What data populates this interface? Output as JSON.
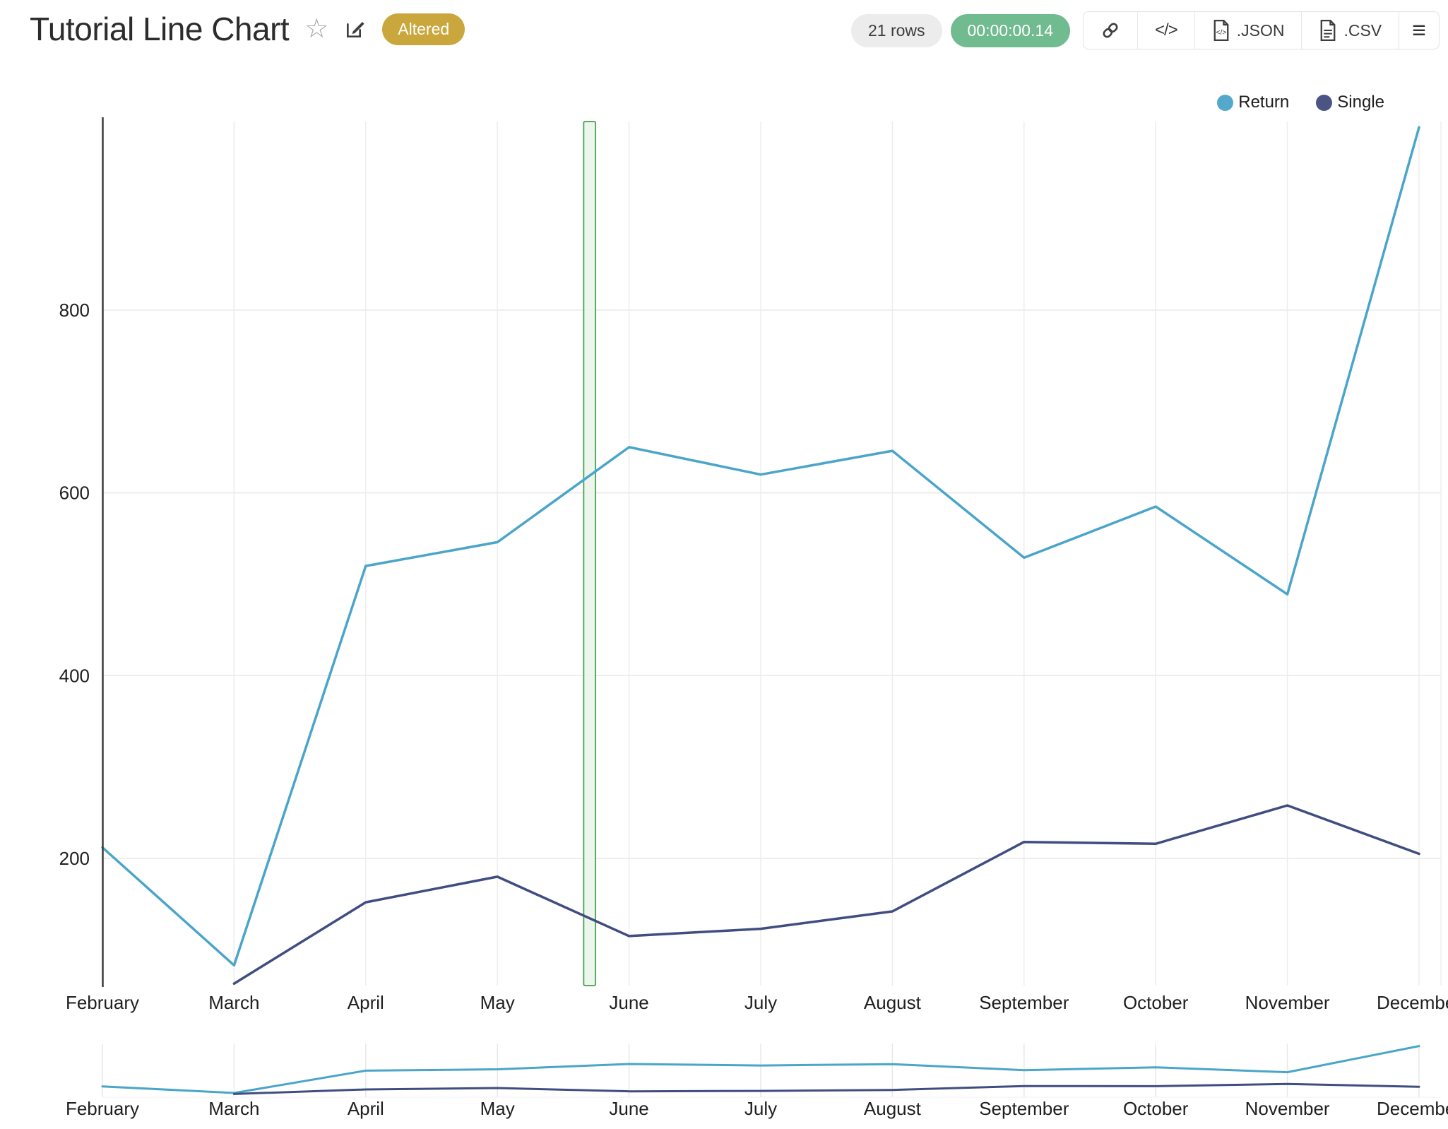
{
  "header": {
    "title": "Tutorial Line Chart",
    "altered_badge": "Altered",
    "rows_badge": "21 rows",
    "runtime_badge": "00:00:00.14",
    "export_json_label": ".JSON",
    "export_csv_label": ".CSV"
  },
  "icons": {
    "star": "☆",
    "edit": "edit-pencil-on-square",
    "link": "chain-link",
    "code": "</>",
    "json_file": "file-with-code",
    "csv_file": "file-with-lines",
    "menu": "≡"
  },
  "legend": {
    "items": [
      {
        "label": "Return",
        "color": "#54a8cb"
      },
      {
        "label": "Single",
        "color": "#4a5585"
      }
    ]
  },
  "colors": {
    "return_line": "#4aa5c9",
    "single_line": "#404d80",
    "grid": "#e8e8e8",
    "vgrid": "#ededed",
    "axis": "#3b3b3b",
    "tick_text": "#1f1f1f",
    "band_fill": "#e9f4ea",
    "band_border": "#57a95d",
    "altered_gold": "#c9a73c",
    "timer_green": "#71bb90",
    "rows_gray": "#ececec"
  },
  "chart_data": {
    "type": "line",
    "title": "Tutorial Line Chart",
    "categories": [
      "February",
      "March",
      "April",
      "May",
      "June",
      "July",
      "August",
      "September",
      "October",
      "November",
      "December"
    ],
    "series": [
      {
        "name": "Return",
        "color": "#4aa5c9",
        "values": [
          212,
          83,
          520,
          546,
          650,
          620,
          646,
          529,
          585,
          489,
          1000
        ]
      },
      {
        "name": "Single",
        "color": "#404d80",
        "values": [
          null,
          63,
          152,
          180,
          115,
          123,
          142,
          218,
          216,
          258,
          205
        ]
      }
    ],
    "xlabel": "",
    "ylabel": "",
    "yticks": [
      200,
      400,
      600,
      800
    ],
    "ylim": [
      57,
      1003
    ],
    "grid": true,
    "legend_position": "top-right",
    "highlight_band": {
      "between": [
        "May",
        "June"
      ],
      "fraction_start": 0.655,
      "fraction_end": 0.745,
      "fill": "#e9f4ea",
      "border": "#57a95d"
    },
    "range_selector_minimap": {
      "present": true,
      "ylim": [
        0,
        1050
      ],
      "categories_repeated": true
    }
  }
}
